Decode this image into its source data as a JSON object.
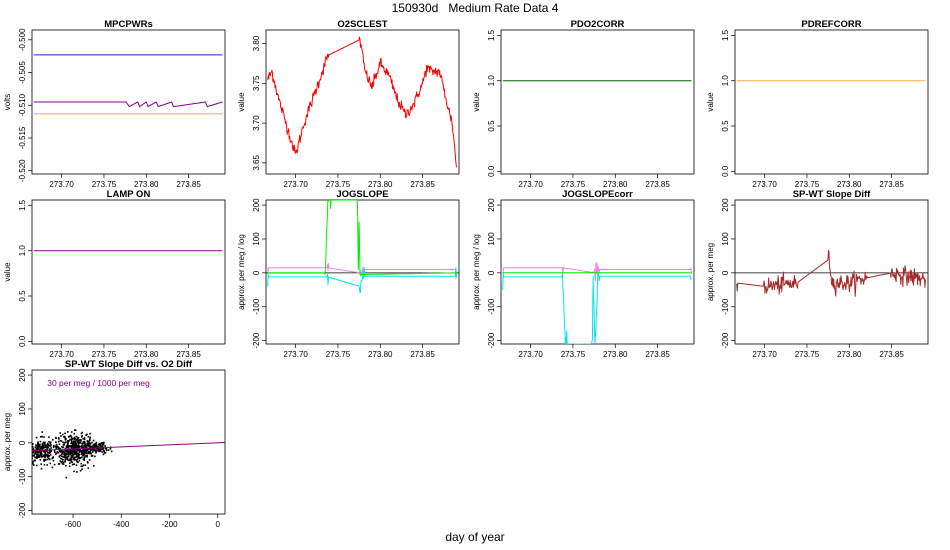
{
  "figure": {
    "title_id": "150930d",
    "title_text": "Medium Rate Data 4",
    "xlabel": "day of year"
  },
  "colors": {
    "blue": "#2222cc",
    "purple": "#8b008b",
    "orange": "#f5b042",
    "red": "#ff0000",
    "darkgreen": "#006400",
    "violet": "#ee82ee",
    "green": "#00ee00",
    "cyan": "#00e5ee",
    "brown": "#a52a2a",
    "black": "#000000"
  },
  "chart_data": [
    {
      "id": "mpcpwrs",
      "type": "line",
      "title": "MPCPWRs",
      "ylabel": "volts",
      "xlim": [
        273.665,
        273.893
      ],
      "ylim": [
        -0.5205,
        -0.4985
      ],
      "xticks": [
        273.7,
        273.75,
        273.8,
        273.85
      ],
      "xticklabels": [
        "273.70",
        "273.75",
        "273.80",
        "273.85"
      ],
      "yticks": [
        -0.52,
        -0.515,
        -0.51,
        -0.505,
        -0.5
      ],
      "yticklabels": [
        "-0.520",
        "-0.515",
        "-0.510",
        "-0.505",
        "-0.500"
      ],
      "series": [
        {
          "color": "blue",
          "x": [
            273.667,
            273.89
          ],
          "y": [
            -0.5023,
            -0.5023
          ]
        },
        {
          "color": "purple",
          "x": [
            273.667,
            273.776,
            273.78,
            273.79,
            273.792,
            273.8,
            273.802,
            273.812,
            273.814,
            273.83,
            273.832,
            273.87,
            273.872,
            273.89
          ],
          "y": [
            -0.5095,
            -0.5095,
            -0.5102,
            -0.5095,
            -0.5102,
            -0.5095,
            -0.5102,
            -0.5095,
            -0.5102,
            -0.5095,
            -0.5102,
            -0.5095,
            -0.5102,
            -0.5095
          ]
        },
        {
          "color": "orange",
          "x": [
            273.667,
            273.89
          ],
          "y": [
            -0.5113,
            -0.5113
          ]
        }
      ]
    },
    {
      "id": "o2sclest",
      "type": "line",
      "title": "O2SCLEST",
      "ylabel": "value",
      "xlim": [
        273.665,
        273.893
      ],
      "ylim": [
        3.636,
        3.817
      ],
      "xticks": [
        273.7,
        273.75,
        273.8,
        273.85
      ],
      "xticklabels": [
        "273.70",
        "273.75",
        "273.80",
        "273.85"
      ],
      "yticks": [
        3.65,
        3.7,
        3.75,
        3.8
      ],
      "yticklabels": [
        "3.65",
        "3.70",
        "3.75",
        "3.80"
      ],
      "series": [
        {
          "color": "red",
          "noise": 0.006,
          "x": [
            273.667,
            273.672,
            273.68,
            273.69,
            273.7,
            273.71,
            273.72,
            273.73,
            273.738,
            273.776,
            273.782,
            273.79,
            273.795,
            273.8,
            273.81,
            273.82,
            273.83,
            273.84,
            273.85,
            273.855,
            273.86,
            273.87,
            273.88,
            273.885,
            273.89
          ],
          "y": [
            3.755,
            3.765,
            3.73,
            3.695,
            3.66,
            3.7,
            3.73,
            3.76,
            3.785,
            3.805,
            3.765,
            3.745,
            3.76,
            3.775,
            3.76,
            3.73,
            3.71,
            3.725,
            3.75,
            3.77,
            3.765,
            3.765,
            3.72,
            3.7,
            3.645
          ]
        }
      ]
    },
    {
      "id": "pdo2corr",
      "type": "line",
      "title": "PDO2CORR",
      "ylabel": "value",
      "xlim": [
        273.665,
        273.893
      ],
      "ylim": [
        -0.03,
        1.56
      ],
      "xticks": [
        273.7,
        273.75,
        273.8,
        273.85
      ],
      "xticklabels": [
        "273.70",
        "273.75",
        "273.80",
        "273.85"
      ],
      "yticks": [
        0.0,
        0.5,
        1.0,
        1.5
      ],
      "yticklabels": [
        "0.0",
        "0.5",
        "1.0",
        "1.5"
      ],
      "series": [
        {
          "color": "darkgreen",
          "x": [
            273.667,
            273.89
          ],
          "y": [
            1.0,
            1.0
          ]
        }
      ]
    },
    {
      "id": "pdrefcorr",
      "type": "line",
      "title": "PDREFCORR",
      "ylabel": "value",
      "xlim": [
        273.665,
        273.893
      ],
      "ylim": [
        -0.03,
        1.56
      ],
      "xticks": [
        273.7,
        273.75,
        273.8,
        273.85
      ],
      "xticklabels": [
        "273.70",
        "273.75",
        "273.80",
        "273.85"
      ],
      "yticks": [
        0.0,
        0.5,
        1.0,
        1.5
      ],
      "yticklabels": [
        "0.0",
        "0.5",
        "1.0",
        "1.5"
      ],
      "series": [
        {
          "color": "orange",
          "x": [
            273.667,
            273.89
          ],
          "y": [
            1.0,
            1.0
          ]
        }
      ]
    },
    {
      "id": "lampon",
      "type": "line",
      "title": "LAMP ON",
      "ylabel": "value",
      "xlim": [
        273.665,
        273.893
      ],
      "ylim": [
        -0.03,
        1.56
      ],
      "xticks": [
        273.7,
        273.75,
        273.8,
        273.85
      ],
      "xticklabels": [
        "273.70",
        "273.75",
        "273.80",
        "273.85"
      ],
      "yticks": [
        0.0,
        0.5,
        1.0,
        1.5
      ],
      "yticklabels": [
        "0.0",
        "0.5",
        "1.0",
        "1.5"
      ],
      "series": [
        {
          "color": "purple",
          "x": [
            273.667,
            273.89
          ],
          "y": [
            1.0,
            1.0
          ]
        }
      ]
    },
    {
      "id": "jogslope",
      "type": "line",
      "title": "JOGSLOPE",
      "ylabel": "approx. per meg / log",
      "xlim": [
        273.665,
        273.893
      ],
      "ylim": [
        -210,
        215
      ],
      "xticks": [
        273.7,
        273.75,
        273.8,
        273.85
      ],
      "xticklabels": [
        "273.70",
        "273.75",
        "273.80",
        "273.85"
      ],
      "yticks": [
        -200,
        -100,
        0,
        100,
        200
      ],
      "yticklabels": [
        "-200",
        "-100",
        "0",
        "100",
        "200"
      ],
      "hline": 0,
      "series": [
        {
          "color": "violet",
          "noise": 20,
          "x": [
            273.667,
            273.738,
            273.776,
            273.78,
            273.89
          ],
          "y": [
            15,
            15,
            0,
            10,
            10
          ]
        },
        {
          "color": "cyan",
          "noise": 28,
          "x": [
            273.667,
            273.738,
            273.776,
            273.78,
            273.89
          ],
          "y": [
            -12,
            -12,
            -40,
            -10,
            -10
          ]
        },
        {
          "color": "green",
          "noise": 12,
          "x": [
            273.667,
            273.735,
            273.738,
            273.74,
            273.741,
            273.773,
            273.774,
            273.775,
            273.776,
            273.89
          ],
          "y": [
            0,
            0,
            210,
            215,
            215,
            215,
            10,
            150,
            -5,
            0
          ]
        }
      ]
    },
    {
      "id": "jogslopecorr",
      "type": "line",
      "title": "JOGSLOPEcorr",
      "ylabel": "approx. per meg / log",
      "xlim": [
        273.665,
        273.893
      ],
      "ylim": [
        -210,
        215
      ],
      "xticks": [
        273.7,
        273.75,
        273.8,
        273.85
      ],
      "xticklabels": [
        "273.70",
        "273.75",
        "273.80",
        "273.85"
      ],
      "yticks": [
        -200,
        -100,
        0,
        100,
        200
      ],
      "yticklabels": [
        "-200",
        "-100",
        "0",
        "100",
        "200"
      ],
      "series": [
        {
          "color": "violet",
          "noise": 20,
          "x": [
            273.667,
            273.738,
            273.776,
            273.78,
            273.89
          ],
          "y": [
            15,
            15,
            0,
            10,
            10
          ]
        },
        {
          "color": "cyan",
          "noise": 28,
          "x": [
            273.667,
            273.738,
            273.741,
            273.742,
            273.773,
            273.774,
            273.776,
            273.78,
            273.89
          ],
          "y": [
            -12,
            -12,
            -210,
            -210,
            -210,
            -10,
            -210,
            -10,
            -10
          ]
        },
        {
          "color": "green",
          "x": [
            273.667,
            273.89
          ],
          "y": [
            0,
            0
          ]
        }
      ]
    },
    {
      "id": "spwt",
      "type": "line",
      "title": "SP-WT Slope Diff",
      "ylabel": "approx. per meg",
      "xlim": [
        273.665,
        273.893
      ],
      "ylim": [
        -210,
        215
      ],
      "xticks": [
        273.7,
        273.75,
        273.8,
        273.85
      ],
      "xticklabels": [
        "273.70",
        "273.75",
        "273.80",
        "273.85"
      ],
      "yticks": [
        -200,
        -100,
        0,
        100,
        200
      ],
      "yticklabels": [
        "-200",
        "-100",
        "0",
        "100",
        "200"
      ],
      "hline": 0,
      "series": [
        {
          "color": "brown",
          "noise": 22,
          "x": [
            273.667,
            273.7,
            273.72,
            273.738,
            273.776,
            273.78,
            273.8,
            273.82,
            273.85,
            273.87,
            273.89
          ],
          "y": [
            -30,
            -40,
            -35,
            -30,
            40,
            -30,
            -30,
            -15,
            0,
            -10,
            -20
          ]
        }
      ]
    },
    {
      "id": "spwt_vs_o2",
      "type": "scatter",
      "title": "SP-WT Slope Diff vs. O2 Diff",
      "ylabel": "approx. per meg",
      "xlim": [
        -770,
        30
      ],
      "ylim": [
        -210,
        215
      ],
      "xticks": [
        -600,
        -400,
        -200,
        0
      ],
      "xticklabels": [
        "-600",
        "-400",
        "-200",
        "0"
      ],
      "yticks": [
        -200,
        -100,
        0,
        100,
        200
      ],
      "yticklabels": [
        "-200",
        "-100",
        "0",
        "100",
        "200"
      ],
      "annotation": "30 per meg / 1000 per meg",
      "cloud": {
        "clusters": [
          {
            "cx": -735,
            "cy": -25,
            "sx": 28,
            "sy": 18,
            "n": 260
          },
          {
            "cx": -595,
            "cy": -20,
            "sx": 40,
            "sy": 22,
            "n": 520
          },
          {
            "cx": -500,
            "cy": -15,
            "sx": 25,
            "sy": 8,
            "n": 120
          }
        ]
      },
      "series": [
        {
          "color": "purple",
          "x": [
            -770,
            30
          ],
          "y": [
            -23,
            1
          ]
        }
      ]
    }
  ]
}
